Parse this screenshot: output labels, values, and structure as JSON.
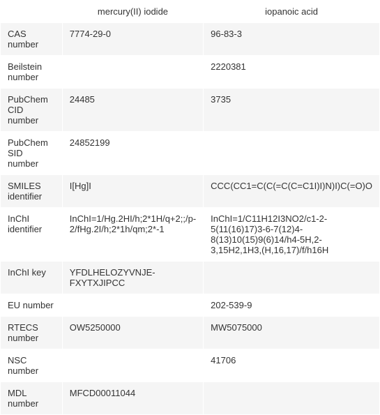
{
  "table": {
    "columns": [
      "",
      "mercury(II) iodide",
      "iopanoic acid"
    ],
    "rows": [
      {
        "label": "CAS number",
        "values": [
          "7774-29-0",
          "96-83-3"
        ]
      },
      {
        "label": "Beilstein number",
        "values": [
          "",
          "2220381"
        ]
      },
      {
        "label": "PubChem CID number",
        "values": [
          "24485",
          "3735"
        ]
      },
      {
        "label": "PubChem SID number",
        "values": [
          "24852199",
          ""
        ]
      },
      {
        "label": "SMILES identifier",
        "values": [
          "I[Hg]I",
          "CCC(CC1=C(C(=C(C=C1I)I)N)I)C(=O)O"
        ]
      },
      {
        "label": "InChI identifier",
        "values": [
          "InChI=1/Hg.2HI/h;2*1H/q+2;;/p-2/fHg.2I/h;2*1h/qm;2*-1",
          "InChI=1/C11H12I3NO2/c1-2-5(11(16)17)3-6-7(12)4-8(13)10(15)9(6)14/h4-5H,2-3,15H2,1H3,(H,16,17)/f/h16H"
        ]
      },
      {
        "label": "InChI key",
        "values": [
          "YFDLHELOZYVNJE-FXYTXJIPCC",
          ""
        ]
      },
      {
        "label": "EU number",
        "values": [
          "",
          "202-539-9"
        ]
      },
      {
        "label": "RTECS number",
        "values": [
          "OW5250000",
          "MW5075000"
        ]
      },
      {
        "label": "NSC number",
        "values": [
          "",
          "41706"
        ]
      },
      {
        "label": "MDL number",
        "values": [
          "MFCD00011044",
          ""
        ]
      }
    ],
    "colors": {
      "background": "#ffffff",
      "row_alt_bg": "#f5f5f5",
      "border": "#ffffff",
      "text": "#333333"
    },
    "fontsize": 13
  }
}
